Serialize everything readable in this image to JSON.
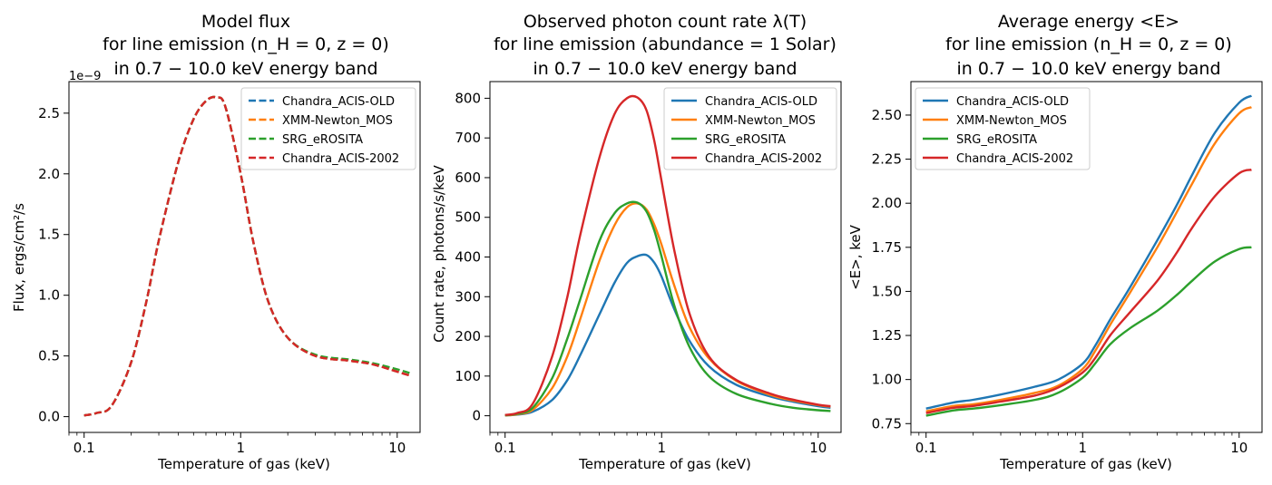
{
  "chart_data": [
    {
      "type": "line",
      "title_lines": [
        "Model flux",
        "for line emission (n_H = 0, z = 0)",
        "in 0.7 − 10.0 keV energy band"
      ],
      "xlabel": "Temperature of gas (keV)",
      "ylabel": "Flux, ergs/cm²/s",
      "y_scale_note": "1e−9",
      "xscale": "log",
      "xlim": [
        0.08,
        14
      ],
      "ylim": [
        -0.13,
        2.76
      ],
      "xticks": [
        0.1,
        1,
        10
      ],
      "xtick_labels": [
        "0.1",
        "1",
        "10"
      ],
      "yticks": [
        0.0,
        0.5,
        1.0,
        1.5,
        2.0,
        2.5
      ],
      "ytick_labels": [
        "0.0",
        "0.5",
        "1.0",
        "1.5",
        "2.0",
        "2.5"
      ],
      "line_style": "dashed",
      "legend_position": "top-right",
      "x": [
        0.1,
        0.12,
        0.15,
        0.2,
        0.25,
        0.3,
        0.4,
        0.5,
        0.6,
        0.7,
        0.8,
        1.0,
        1.2,
        1.5,
        2.0,
        3.0,
        5.0,
        7.0,
        10.0,
        12.0
      ],
      "series": [
        {
          "name": "Chandra_ACIS-OLD",
          "color": "#1f77b4",
          "values": [
            0.01,
            0.03,
            0.09,
            0.45,
            0.95,
            1.45,
            2.1,
            2.45,
            2.6,
            2.63,
            2.55,
            2.0,
            1.45,
            0.95,
            0.65,
            0.5,
            0.46,
            0.43,
            0.37,
            0.34
          ]
        },
        {
          "name": "XMM-Newton_MOS",
          "color": "#ff7f0e",
          "values": [
            0.01,
            0.03,
            0.09,
            0.45,
            0.95,
            1.45,
            2.1,
            2.45,
            2.6,
            2.63,
            2.55,
            2.0,
            1.45,
            0.95,
            0.65,
            0.5,
            0.46,
            0.43,
            0.37,
            0.34
          ]
        },
        {
          "name": "SRG_eROSITA",
          "color": "#2ca02c",
          "values": [
            0.01,
            0.03,
            0.09,
            0.45,
            0.95,
            1.45,
            2.1,
            2.45,
            2.6,
            2.63,
            2.55,
            2.0,
            1.45,
            0.95,
            0.65,
            0.51,
            0.47,
            0.44,
            0.39,
            0.36
          ]
        },
        {
          "name": "Chandra_ACIS-2002",
          "color": "#d62728",
          "values": [
            0.01,
            0.03,
            0.09,
            0.45,
            0.95,
            1.45,
            2.1,
            2.45,
            2.6,
            2.63,
            2.55,
            2.0,
            1.45,
            0.95,
            0.65,
            0.5,
            0.46,
            0.43,
            0.37,
            0.34
          ]
        }
      ]
    },
    {
      "type": "line",
      "title_lines": [
        "Observed photon count rate λ(T)",
        "for line emission (abundance = 1 Solar)",
        "in 0.7 − 10.0 keV energy band"
      ],
      "xlabel": "Temperature of gas (keV)",
      "ylabel": "Count rate, photons/s/keV",
      "xscale": "log",
      "xlim": [
        0.08,
        14
      ],
      "ylim": [
        -42,
        842
      ],
      "xticks": [
        0.1,
        1,
        10
      ],
      "xtick_labels": [
        "0.1",
        "1",
        "10"
      ],
      "yticks": [
        0,
        100,
        200,
        300,
        400,
        500,
        600,
        700,
        800
      ],
      "ytick_labels": [
        "0",
        "100",
        "200",
        "300",
        "400",
        "500",
        "600",
        "700",
        "800"
      ],
      "line_style": "solid",
      "legend_position": "top-right",
      "x": [
        0.1,
        0.12,
        0.15,
        0.2,
        0.25,
        0.3,
        0.4,
        0.5,
        0.6,
        0.7,
        0.8,
        0.9,
        1.0,
        1.2,
        1.5,
        2.0,
        3.0,
        5.0,
        7.0,
        10.0,
        12.0
      ],
      "series": [
        {
          "name": "Chandra_ACIS-OLD",
          "color": "#1f77b4",
          "values": [
            1,
            3,
            10,
            40,
            90,
            150,
            255,
            335,
            385,
            402,
            405,
            385,
            350,
            270,
            190,
            125,
            78,
            48,
            35,
            24,
            20
          ]
        },
        {
          "name": "XMM-Newton_MOS",
          "color": "#ff7f0e",
          "values": [
            1,
            4,
            15,
            70,
            150,
            240,
            390,
            480,
            525,
            535,
            520,
            480,
            430,
            330,
            225,
            145,
            88,
            52,
            38,
            27,
            23
          ]
        },
        {
          "name": "SRG_eROSITA",
          "color": "#2ca02c",
          "values": [
            1,
            5,
            20,
            95,
            195,
            290,
            440,
            510,
            535,
            537,
            515,
            465,
            400,
            280,
            175,
            100,
            55,
            30,
            20,
            14,
            12
          ]
        },
        {
          "name": "Chandra_ACIS-2002",
          "color": "#d62728",
          "values": [
            2,
            7,
            30,
            150,
            300,
            450,
            650,
            760,
            800,
            802,
            770,
            690,
            590,
            420,
            260,
            150,
            90,
            55,
            40,
            28,
            24
          ]
        }
      ]
    },
    {
      "type": "line",
      "title_lines": [
        "Average energy <E>",
        "for line emission (n_H = 0, z = 0)",
        "in 0.7 − 10.0 keV energy band"
      ],
      "xlabel": "Temperature of gas (keV)",
      "ylabel": "<E>, keV",
      "xscale": "log",
      "xlim": [
        0.08,
        14
      ],
      "ylim": [
        0.7,
        2.69
      ],
      "xticks": [
        0.1,
        1,
        10
      ],
      "xtick_labels": [
        "0.1",
        "1",
        "10"
      ],
      "yticks": [
        0.75,
        1.0,
        1.25,
        1.5,
        1.75,
        2.0,
        2.25,
        2.5
      ],
      "ytick_labels": [
        "0.75",
        "1.00",
        "1.25",
        "1.50",
        "1.75",
        "2.00",
        "2.25",
        "2.50"
      ],
      "line_style": "solid",
      "legend_position": "top-left",
      "x": [
        0.1,
        0.15,
        0.2,
        0.3,
        0.5,
        0.7,
        1.0,
        1.2,
        1.5,
        2.0,
        3.0,
        4.0,
        5.0,
        7.0,
        10.0,
        12.0
      ],
      "series": [
        {
          "name": "Chandra_ACIS-OLD",
          "color": "#1f77b4",
          "values": [
            0.835,
            0.87,
            0.885,
            0.915,
            0.96,
            1.0,
            1.09,
            1.19,
            1.34,
            1.52,
            1.79,
            1.99,
            2.16,
            2.4,
            2.57,
            2.61
          ]
        },
        {
          "name": "XMM-Newton_MOS",
          "color": "#ff7f0e",
          "values": [
            0.82,
            0.85,
            0.86,
            0.885,
            0.925,
            0.965,
            1.06,
            1.16,
            1.31,
            1.49,
            1.75,
            1.95,
            2.11,
            2.34,
            2.51,
            2.545
          ]
        },
        {
          "name": "SRG_eROSITA",
          "color": "#2ca02c",
          "values": [
            0.795,
            0.825,
            0.835,
            0.855,
            0.885,
            0.925,
            1.01,
            1.09,
            1.2,
            1.29,
            1.39,
            1.48,
            1.56,
            1.67,
            1.74,
            1.75
          ]
        },
        {
          "name": "Chandra_ACIS-2002",
          "color": "#d62728",
          "values": [
            0.81,
            0.84,
            0.85,
            0.875,
            0.91,
            0.955,
            1.04,
            1.12,
            1.25,
            1.38,
            1.56,
            1.72,
            1.86,
            2.04,
            2.17,
            2.19
          ]
        }
      ]
    }
  ]
}
